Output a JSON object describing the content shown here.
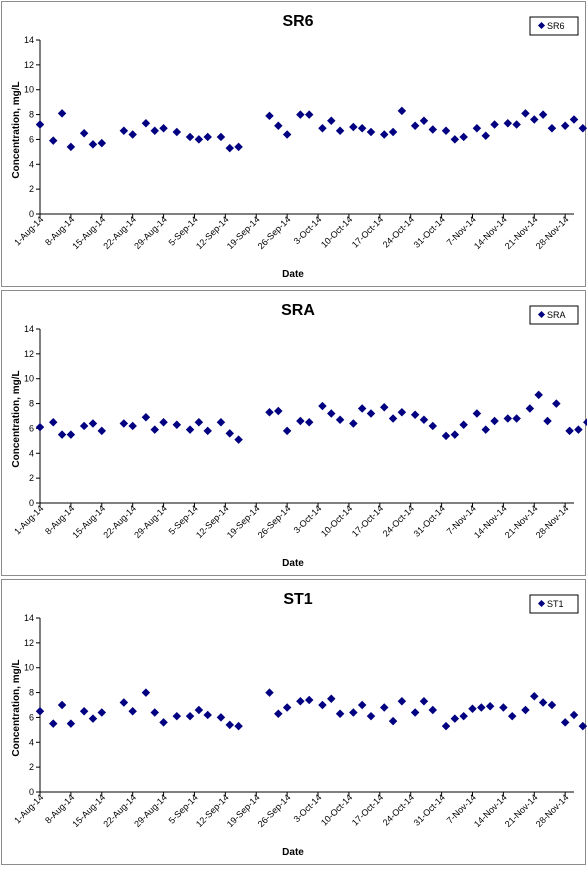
{
  "chart_data": [
    {
      "type": "scatter",
      "title": "SR6",
      "xlabel": "Date",
      "ylabel": "Concentration, mg/L",
      "ylim": [
        0,
        14
      ],
      "yticks": [
        0,
        2,
        4,
        6,
        8,
        10,
        12,
        14
      ],
      "xlim": [
        "2014-08-01",
        "2014-11-30"
      ],
      "xticks": [
        "1-Aug-14",
        "8-Aug-14",
        "15-Aug-14",
        "22-Aug-14",
        "29-Aug-14",
        "5-Sep-14",
        "12-Sep-14",
        "19-Sep-14",
        "26-Sep-14",
        "3-Oct-14",
        "10-Oct-14",
        "17-Oct-14",
        "24-Oct-14",
        "31-Oct-14",
        "7-Nov-14",
        "14-Nov-14",
        "21-Nov-14",
        "28-Nov-14"
      ],
      "grid": false,
      "legend": "top-right",
      "marker_color": "#000080",
      "series": [
        {
          "name": "SR6",
          "points": [
            {
              "x": "2014-08-01",
              "y": 7.2
            },
            {
              "x": "2014-08-04",
              "y": 5.9
            },
            {
              "x": "2014-08-06",
              "y": 8.1
            },
            {
              "x": "2014-08-08",
              "y": 5.4
            },
            {
              "x": "2014-08-11",
              "y": 6.5
            },
            {
              "x": "2014-08-13",
              "y": 5.6
            },
            {
              "x": "2014-08-15",
              "y": 5.7
            },
            {
              "x": "2014-08-20",
              "y": 6.7
            },
            {
              "x": "2014-08-22",
              "y": 6.4
            },
            {
              "x": "2014-08-25",
              "y": 7.3
            },
            {
              "x": "2014-08-27",
              "y": 6.7
            },
            {
              "x": "2014-08-29",
              "y": 6.9
            },
            {
              "x": "2014-09-01",
              "y": 6.6
            },
            {
              "x": "2014-09-04",
              "y": 6.2
            },
            {
              "x": "2014-09-06",
              "y": 6.0
            },
            {
              "x": "2014-09-08",
              "y": 6.2
            },
            {
              "x": "2014-09-11",
              "y": 6.2
            },
            {
              "x": "2014-09-13",
              "y": 5.3
            },
            {
              "x": "2014-09-15",
              "y": 5.4
            },
            {
              "x": "2014-09-22",
              "y": 7.9
            },
            {
              "x": "2014-09-24",
              "y": 7.1
            },
            {
              "x": "2014-09-26",
              "y": 6.4
            },
            {
              "x": "2014-09-29",
              "y": 8.0
            },
            {
              "x": "2014-10-01",
              "y": 8.0
            },
            {
              "x": "2014-10-04",
              "y": 6.9
            },
            {
              "x": "2014-10-06",
              "y": 7.5
            },
            {
              "x": "2014-10-08",
              "y": 6.7
            },
            {
              "x": "2014-10-11",
              "y": 7.0
            },
            {
              "x": "2014-10-13",
              "y": 6.9
            },
            {
              "x": "2014-10-15",
              "y": 6.6
            },
            {
              "x": "2014-10-18",
              "y": 6.4
            },
            {
              "x": "2014-10-20",
              "y": 6.6
            },
            {
              "x": "2014-10-22",
              "y": 8.3
            },
            {
              "x": "2014-10-25",
              "y": 7.1
            },
            {
              "x": "2014-10-27",
              "y": 7.5
            },
            {
              "x": "2014-10-29",
              "y": 6.8
            },
            {
              "x": "2014-11-01",
              "y": 6.7
            },
            {
              "x": "2014-11-03",
              "y": 6.0
            },
            {
              "x": "2014-11-05",
              "y": 6.2
            },
            {
              "x": "2014-11-08",
              "y": 6.9
            },
            {
              "x": "2014-11-10",
              "y": 6.3
            },
            {
              "x": "2014-11-12",
              "y": 7.2
            },
            {
              "x": "2014-11-15",
              "y": 7.3
            },
            {
              "x": "2014-11-17",
              "y": 7.2
            },
            {
              "x": "2014-11-19",
              "y": 8.1
            },
            {
              "x": "2014-11-21",
              "y": 7.6
            },
            {
              "x": "2014-11-23",
              "y": 8.0
            },
            {
              "x": "2014-11-25",
              "y": 6.9
            },
            {
              "x": "2014-11-28",
              "y": 7.1
            },
            {
              "x": "2014-11-30",
              "y": 7.6
            },
            {
              "x": "2014-12-02",
              "y": 6.9
            }
          ]
        }
      ]
    },
    {
      "type": "scatter",
      "title": "SRA",
      "xlabel": "Date",
      "ylabel": "Concentration, mg/L",
      "ylim": [
        0,
        14
      ],
      "yticks": [
        0,
        2,
        4,
        6,
        8,
        10,
        12,
        14
      ],
      "xlim": [
        "2014-08-01",
        "2014-11-30"
      ],
      "xticks": [
        "1-Aug-14",
        "8-Aug-14",
        "15-Aug-14",
        "22-Aug-14",
        "29-Aug-14",
        "5-Sep-14",
        "12-Sep-14",
        "19-Sep-14",
        "26-Sep-14",
        "3-Oct-14",
        "10-Oct-14",
        "17-Oct-14",
        "24-Oct-14",
        "31-Oct-14",
        "7-Nov-14",
        "14-Nov-14",
        "21-Nov-14",
        "28-Nov-14"
      ],
      "grid": false,
      "legend": "top-right",
      "marker_color": "#000080",
      "series": [
        {
          "name": "SRA",
          "points": [
            {
              "x": "2014-08-01",
              "y": 6.1
            },
            {
              "x": "2014-08-04",
              "y": 6.5
            },
            {
              "x": "2014-08-06",
              "y": 5.5
            },
            {
              "x": "2014-08-08",
              "y": 5.5
            },
            {
              "x": "2014-08-11",
              "y": 6.2
            },
            {
              "x": "2014-08-13",
              "y": 6.4
            },
            {
              "x": "2014-08-15",
              "y": 5.8
            },
            {
              "x": "2014-08-20",
              "y": 6.4
            },
            {
              "x": "2014-08-22",
              "y": 6.2
            },
            {
              "x": "2014-08-25",
              "y": 6.9
            },
            {
              "x": "2014-08-27",
              "y": 5.9
            },
            {
              "x": "2014-08-29",
              "y": 6.5
            },
            {
              "x": "2014-09-01",
              "y": 6.3
            },
            {
              "x": "2014-09-04",
              "y": 5.9
            },
            {
              "x": "2014-09-06",
              "y": 6.5
            },
            {
              "x": "2014-09-08",
              "y": 5.8
            },
            {
              "x": "2014-09-11",
              "y": 6.5
            },
            {
              "x": "2014-09-13",
              "y": 5.6
            },
            {
              "x": "2014-09-15",
              "y": 5.1
            },
            {
              "x": "2014-09-22",
              "y": 7.3
            },
            {
              "x": "2014-09-24",
              "y": 7.4
            },
            {
              "x": "2014-09-26",
              "y": 5.8
            },
            {
              "x": "2014-09-29",
              "y": 6.6
            },
            {
              "x": "2014-10-01",
              "y": 6.5
            },
            {
              "x": "2014-10-04",
              "y": 7.8
            },
            {
              "x": "2014-10-06",
              "y": 7.2
            },
            {
              "x": "2014-10-08",
              "y": 6.7
            },
            {
              "x": "2014-10-11",
              "y": 6.4
            },
            {
              "x": "2014-10-13",
              "y": 7.6
            },
            {
              "x": "2014-10-15",
              "y": 7.2
            },
            {
              "x": "2014-10-18",
              "y": 7.7
            },
            {
              "x": "2014-10-20",
              "y": 6.8
            },
            {
              "x": "2014-10-22",
              "y": 7.3
            },
            {
              "x": "2014-10-25",
              "y": 7.1
            },
            {
              "x": "2014-10-27",
              "y": 6.7
            },
            {
              "x": "2014-10-29",
              "y": 6.2
            },
            {
              "x": "2014-11-01",
              "y": 5.4
            },
            {
              "x": "2014-11-03",
              "y": 5.5
            },
            {
              "x": "2014-11-05",
              "y": 6.3
            },
            {
              "x": "2014-11-08",
              "y": 7.2
            },
            {
              "x": "2014-11-10",
              "y": 5.9
            },
            {
              "x": "2014-11-12",
              "y": 6.6
            },
            {
              "x": "2014-11-15",
              "y": 6.8
            },
            {
              "x": "2014-11-17",
              "y": 6.8
            },
            {
              "x": "2014-11-20",
              "y": 7.6
            },
            {
              "x": "2014-11-22",
              "y": 8.7
            },
            {
              "x": "2014-11-24",
              "y": 6.6
            },
            {
              "x": "2014-11-26",
              "y": 8.0
            },
            {
              "x": "2014-11-29",
              "y": 5.8
            },
            {
              "x": "2014-12-01",
              "y": 5.9
            },
            {
              "x": "2014-12-03",
              "y": 6.5
            }
          ]
        }
      ]
    },
    {
      "type": "scatter",
      "title": "ST1",
      "xlabel": "Date",
      "ylabel": "Concentration, mg/L",
      "ylim": [
        0,
        14
      ],
      "yticks": [
        0,
        2,
        4,
        6,
        8,
        10,
        12,
        14
      ],
      "xlim": [
        "2014-08-01",
        "2014-11-30"
      ],
      "xticks": [
        "1-Aug-14",
        "8-Aug-14",
        "15-Aug-14",
        "22-Aug-14",
        "29-Aug-14",
        "5-Sep-14",
        "12-Sep-14",
        "19-Sep-14",
        "26-Sep-14",
        "3-Oct-14",
        "10-Oct-14",
        "17-Oct-14",
        "24-Oct-14",
        "31-Oct-14",
        "7-Nov-14",
        "14-Nov-14",
        "21-Nov-14",
        "28-Nov-14"
      ],
      "grid": false,
      "legend": "top-right",
      "marker_color": "#000080",
      "series": [
        {
          "name": "ST1",
          "points": [
            {
              "x": "2014-08-01",
              "y": 6.5
            },
            {
              "x": "2014-08-04",
              "y": 5.5
            },
            {
              "x": "2014-08-06",
              "y": 7.0
            },
            {
              "x": "2014-08-08",
              "y": 5.5
            },
            {
              "x": "2014-08-11",
              "y": 6.5
            },
            {
              "x": "2014-08-13",
              "y": 5.9
            },
            {
              "x": "2014-08-15",
              "y": 6.4
            },
            {
              "x": "2014-08-20",
              "y": 7.2
            },
            {
              "x": "2014-08-22",
              "y": 6.5
            },
            {
              "x": "2014-08-25",
              "y": 8.0
            },
            {
              "x": "2014-08-27",
              "y": 6.4
            },
            {
              "x": "2014-08-29",
              "y": 5.6
            },
            {
              "x": "2014-09-01",
              "y": 6.1
            },
            {
              "x": "2014-09-04",
              "y": 6.1
            },
            {
              "x": "2014-09-06",
              "y": 6.6
            },
            {
              "x": "2014-09-08",
              "y": 6.2
            },
            {
              "x": "2014-09-11",
              "y": 6.0
            },
            {
              "x": "2014-09-13",
              "y": 5.4
            },
            {
              "x": "2014-09-15",
              "y": 5.3
            },
            {
              "x": "2014-09-22",
              "y": 8.0
            },
            {
              "x": "2014-09-24",
              "y": 6.3
            },
            {
              "x": "2014-09-26",
              "y": 6.8
            },
            {
              "x": "2014-09-29",
              "y": 7.3
            },
            {
              "x": "2014-10-01",
              "y": 7.4
            },
            {
              "x": "2014-10-04",
              "y": 7.0
            },
            {
              "x": "2014-10-06",
              "y": 7.5
            },
            {
              "x": "2014-10-08",
              "y": 6.3
            },
            {
              "x": "2014-10-11",
              "y": 6.4
            },
            {
              "x": "2014-10-13",
              "y": 7.0
            },
            {
              "x": "2014-10-15",
              "y": 6.1
            },
            {
              "x": "2014-10-18",
              "y": 6.8
            },
            {
              "x": "2014-10-20",
              "y": 5.7
            },
            {
              "x": "2014-10-22",
              "y": 7.3
            },
            {
              "x": "2014-10-25",
              "y": 6.4
            },
            {
              "x": "2014-10-27",
              "y": 7.3
            },
            {
              "x": "2014-10-29",
              "y": 6.6
            },
            {
              "x": "2014-11-01",
              "y": 5.3
            },
            {
              "x": "2014-11-03",
              "y": 5.9
            },
            {
              "x": "2014-11-05",
              "y": 6.1
            },
            {
              "x": "2014-11-07",
              "y": 6.7
            },
            {
              "x": "2014-11-09",
              "y": 6.8
            },
            {
              "x": "2014-11-11",
              "y": 6.9
            },
            {
              "x": "2014-11-14",
              "y": 6.8
            },
            {
              "x": "2014-11-16",
              "y": 6.1
            },
            {
              "x": "2014-11-19",
              "y": 6.6
            },
            {
              "x": "2014-11-21",
              "y": 7.7
            },
            {
              "x": "2014-11-23",
              "y": 7.2
            },
            {
              "x": "2014-11-25",
              "y": 7.0
            },
            {
              "x": "2014-11-28",
              "y": 5.6
            },
            {
              "x": "2014-11-30",
              "y": 6.2
            },
            {
              "x": "2014-12-02",
              "y": 5.3
            }
          ]
        }
      ]
    }
  ]
}
